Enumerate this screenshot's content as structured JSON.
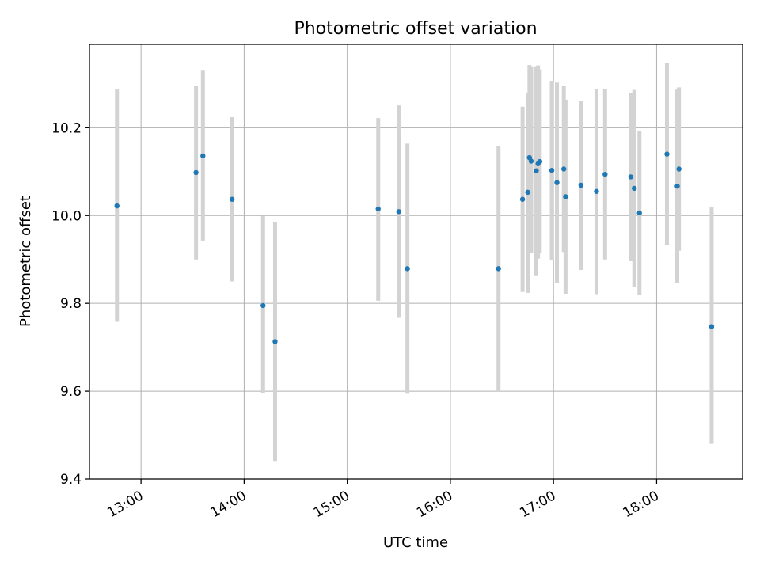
{
  "chart_data": {
    "type": "scatter",
    "title": "Photometric offset variation",
    "xlabel": "UTC time",
    "ylabel": "Photometric offset",
    "xlim": [
      "12:30",
      "18:50"
    ],
    "ylim": [
      9.4,
      10.39
    ],
    "x_ticks": [
      "13:00",
      "14:00",
      "15:00",
      "16:00",
      "17:00",
      "18:00"
    ],
    "y_ticks": [
      "9.4",
      "9.6",
      "9.8",
      "10.0",
      "10.2"
    ],
    "grid": true,
    "series": [
      {
        "marker_color": "#1f77b4",
        "errorbar_color": "#d3d3d3",
        "points": [
          {
            "x": "12:46",
            "y": 10.022,
            "err_low": 9.758,
            "err_high": 10.287
          },
          {
            "x": "13:32",
            "y": 10.098,
            "err_low": 9.9,
            "err_high": 10.296
          },
          {
            "x": "13:36",
            "y": 10.136,
            "err_low": 9.943,
            "err_high": 10.33
          },
          {
            "x": "13:53",
            "y": 10.037,
            "err_low": 9.85,
            "err_high": 10.224
          },
          {
            "x": "14:11",
            "y": 9.795,
            "err_low": 9.595,
            "err_high": 9.999
          },
          {
            "x": "14:18",
            "y": 9.713,
            "err_low": 9.441,
            "err_high": 9.986
          },
          {
            "x": "15:18",
            "y": 10.015,
            "err_low": 9.806,
            "err_high": 10.222
          },
          {
            "x": "15:30",
            "y": 10.009,
            "err_low": 9.767,
            "err_high": 10.251
          },
          {
            "x": "15:35",
            "y": 9.879,
            "err_low": 9.594,
            "err_high": 10.164
          },
          {
            "x": "16:28",
            "y": 9.879,
            "err_low": 9.6,
            "err_high": 10.158
          },
          {
            "x": "16:42",
            "y": 10.037,
            "err_low": 9.826,
            "err_high": 10.248
          },
          {
            "x": "16:45",
            "y": 10.053,
            "err_low": 9.824,
            "err_high": 10.28
          },
          {
            "x": "16:46",
            "y": 10.132,
            "err_low": 9.921,
            "err_high": 10.343
          },
          {
            "x": "16:47",
            "y": 10.124,
            "err_low": 9.914,
            "err_high": 10.34
          },
          {
            "x": "16:50",
            "y": 10.102,
            "err_low": 9.864,
            "err_high": 10.34
          },
          {
            "x": "16:51",
            "y": 10.118,
            "err_low": 9.902,
            "err_high": 10.342
          },
          {
            "x": "16:52",
            "y": 10.123,
            "err_low": 9.914,
            "err_high": 10.333
          },
          {
            "x": "16:59",
            "y": 10.103,
            "err_low": 9.899,
            "err_high": 10.307
          },
          {
            "x": "17:02",
            "y": 10.075,
            "err_low": 9.846,
            "err_high": 10.303
          },
          {
            "x": "17:06",
            "y": 10.106,
            "err_low": 9.917,
            "err_high": 10.295
          },
          {
            "x": "17:07",
            "y": 10.043,
            "err_low": 9.822,
            "err_high": 10.264
          },
          {
            "x": "17:16",
            "y": 10.069,
            "err_low": 9.876,
            "err_high": 10.261
          },
          {
            "x": "17:25",
            "y": 10.055,
            "err_low": 9.821,
            "err_high": 10.289
          },
          {
            "x": "17:30",
            "y": 10.094,
            "err_low": 9.9,
            "err_high": 10.288
          },
          {
            "x": "17:45",
            "y": 10.088,
            "err_low": 9.896,
            "err_high": 10.28
          },
          {
            "x": "17:47",
            "y": 10.062,
            "err_low": 9.838,
            "err_high": 10.286
          },
          {
            "x": "17:50",
            "y": 10.006,
            "err_low": 9.82,
            "err_high": 10.192
          },
          {
            "x": "18:06",
            "y": 10.14,
            "err_low": 9.932,
            "err_high": 10.348
          },
          {
            "x": "18:12",
            "y": 10.067,
            "err_low": 9.847,
            "err_high": 10.287
          },
          {
            "x": "18:13",
            "y": 10.106,
            "err_low": 9.92,
            "err_high": 10.292
          },
          {
            "x": "18:32",
            "y": 9.747,
            "err_low": 9.48,
            "err_high": 10.02
          }
        ]
      }
    ]
  }
}
